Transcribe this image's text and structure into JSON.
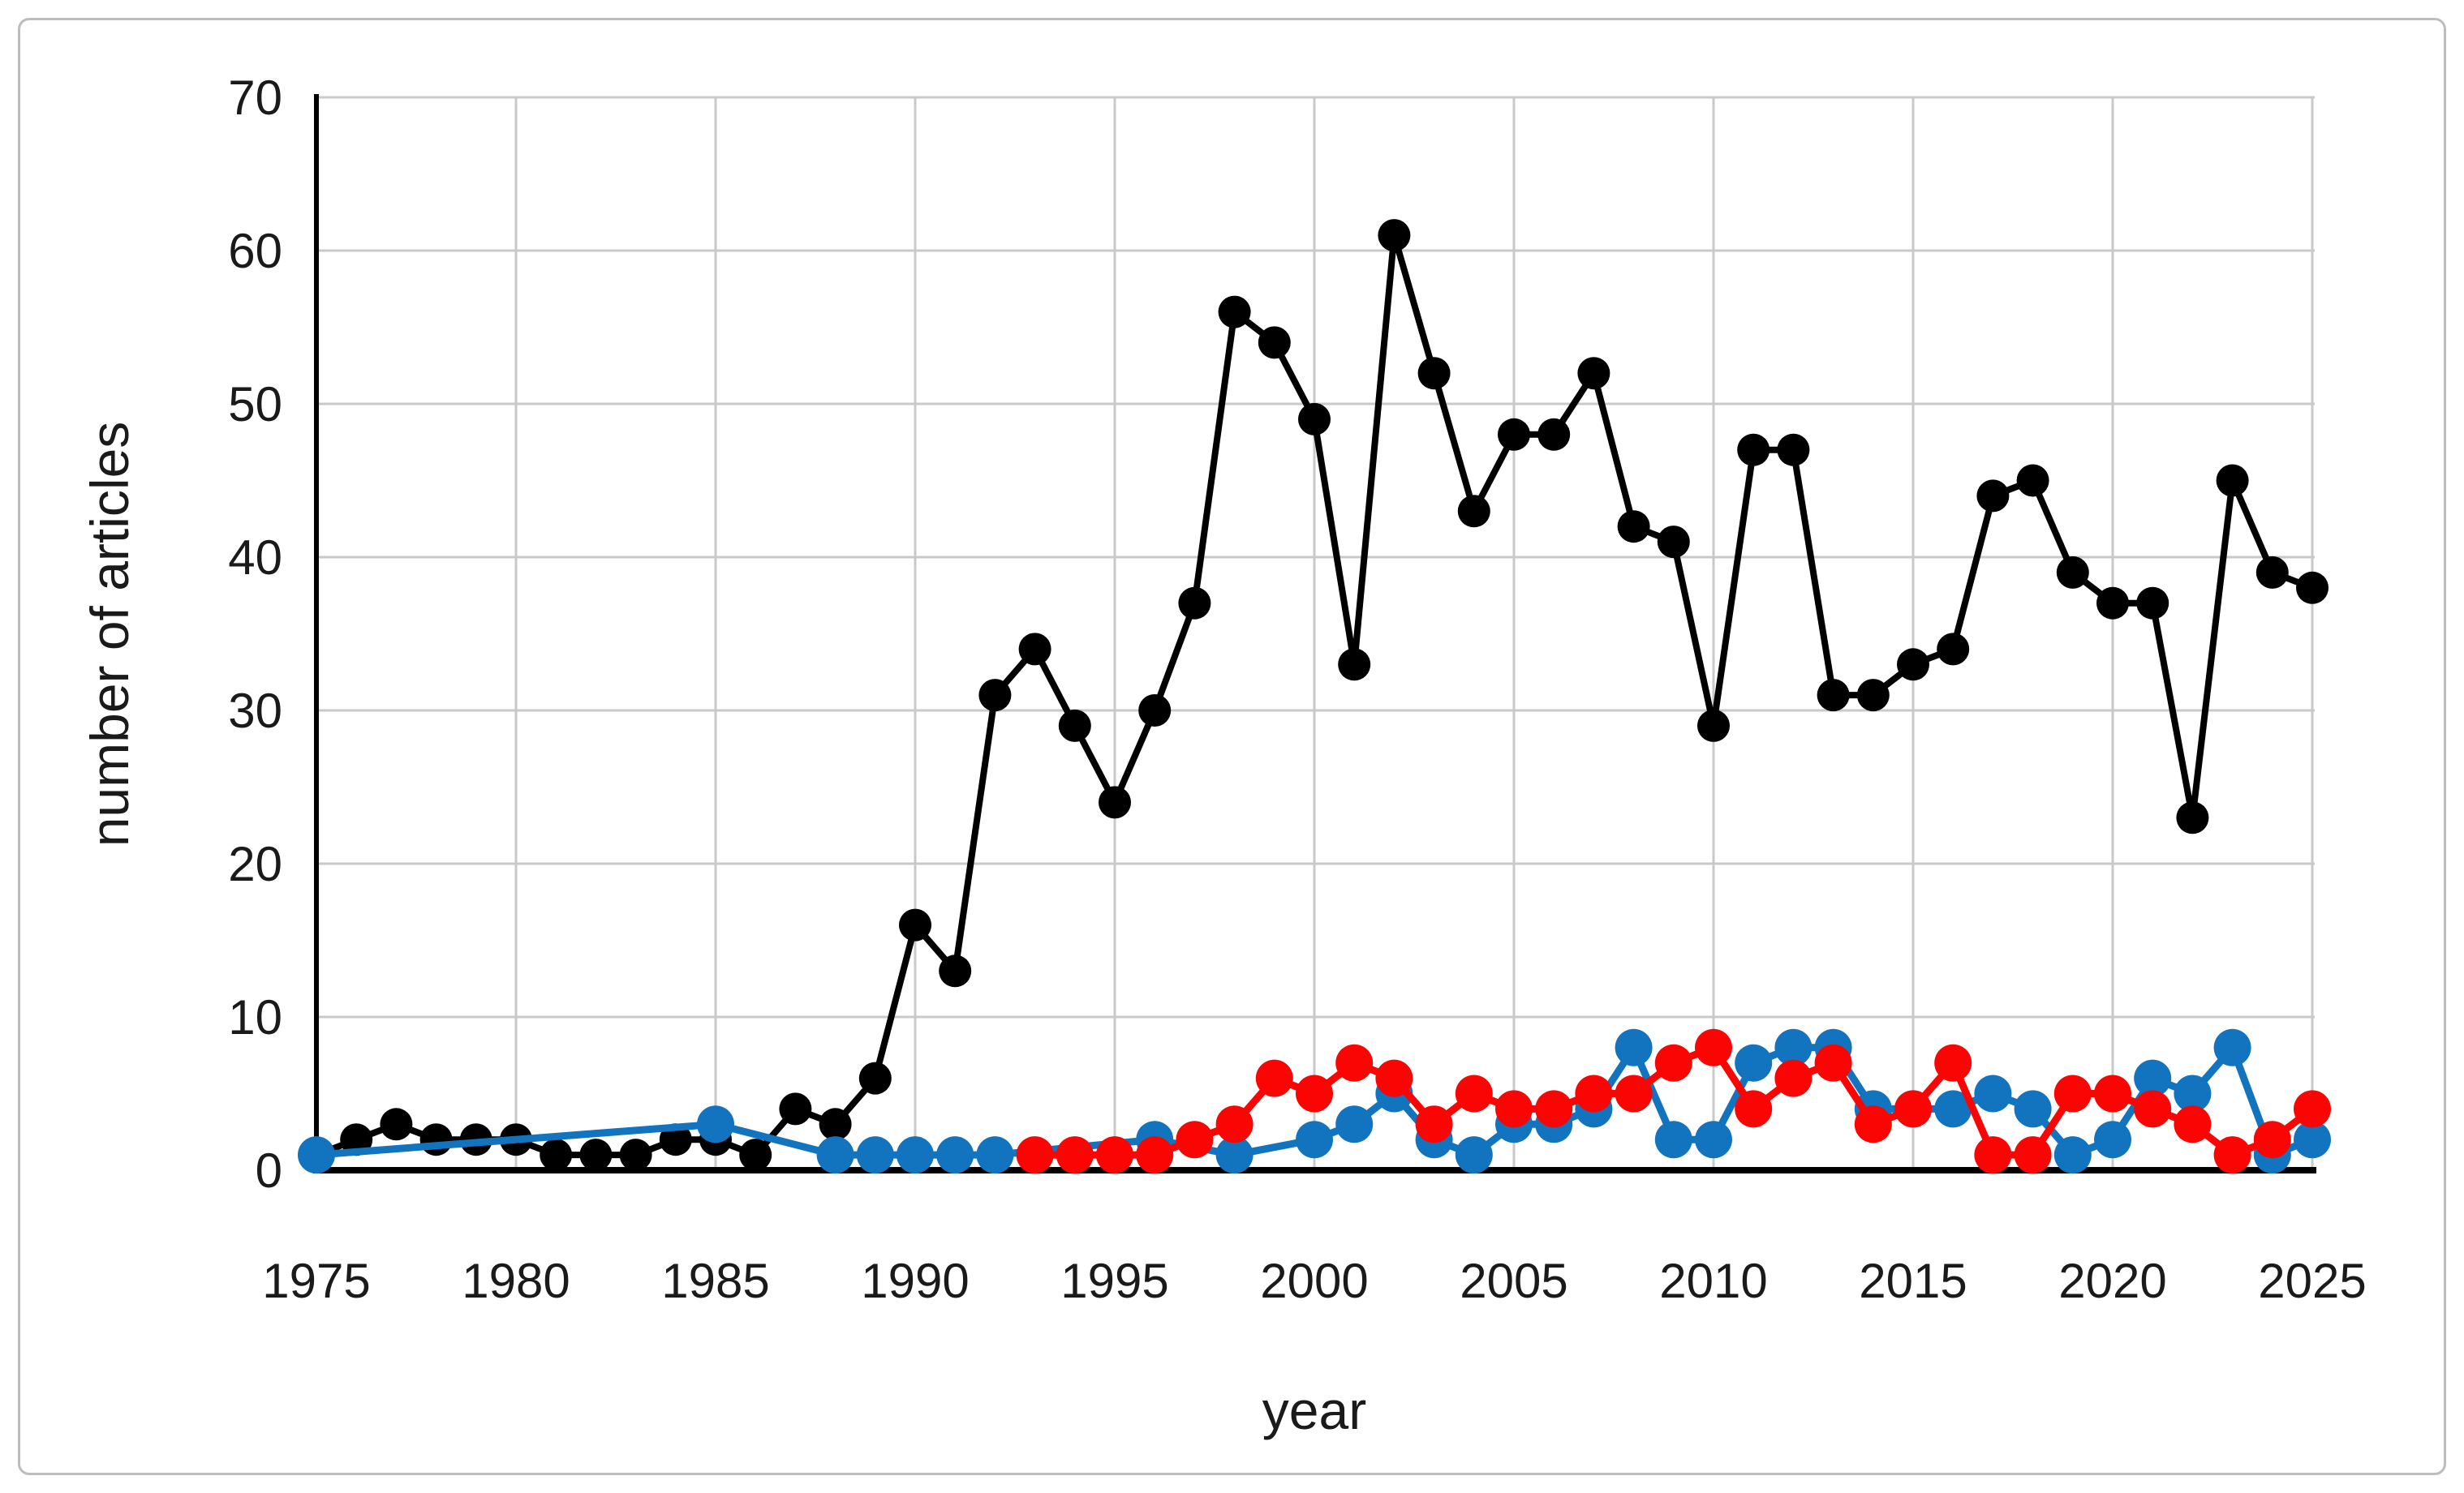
{
  "figure": {
    "background_color": "#ffffff",
    "border_color": "#bdbdbd"
  },
  "chart_data": {
    "type": "line",
    "title": "",
    "xlabel": "year",
    "ylabel": "number of articles",
    "xlim": [
      1975,
      2025
    ],
    "ylim": [
      0,
      70
    ],
    "x_ticks": [
      1975,
      1980,
      1985,
      1990,
      1995,
      2000,
      2005,
      2010,
      2015,
      2020,
      2025
    ],
    "y_ticks": [
      0,
      10,
      20,
      30,
      40,
      50,
      60,
      70
    ],
    "grid": true,
    "legend_position": "none",
    "gridline_color": "#c9c9c9",
    "axis_line_color": "#000000",
    "years": [
      1975,
      1976,
      1977,
      1978,
      1979,
      1980,
      1981,
      1982,
      1983,
      1984,
      1985,
      1986,
      1987,
      1988,
      1989,
      1990,
      1991,
      1992,
      1993,
      1994,
      1995,
      1996,
      1997,
      1998,
      1999,
      2000,
      2001,
      2002,
      2003,
      2004,
      2005,
      2006,
      2007,
      2008,
      2009,
      2010,
      2011,
      2012,
      2013,
      2014,
      2015,
      2016,
      2017,
      2018,
      2019,
      2020,
      2021,
      2022,
      2023,
      2024,
      2025
    ],
    "series": [
      {
        "name": "black",
        "color": "#000000",
        "values": [
          1,
          2,
          3,
          2,
          2,
          2,
          1,
          1,
          1,
          2,
          2,
          1,
          4,
          3,
          6,
          16,
          13,
          31,
          34,
          29,
          24,
          30,
          37,
          56,
          54,
          49,
          33,
          61,
          52,
          43,
          48,
          48,
          52,
          42,
          41,
          29,
          47,
          47,
          31,
          31,
          33,
          34,
          44,
          45,
          39,
          37,
          37,
          23,
          45,
          39,
          38
        ]
      },
      {
        "name": "blue",
        "color": "#1274bf",
        "values": [
          1,
          null,
          null,
          null,
          null,
          null,
          null,
          null,
          null,
          null,
          3,
          null,
          null,
          1,
          1,
          1,
          1,
          1,
          null,
          null,
          null,
          2,
          null,
          1,
          null,
          2,
          3,
          5,
          2,
          1,
          3,
          3,
          4,
          8,
          2,
          2,
          7,
          8,
          8,
          4,
          4,
          4,
          5,
          4,
          1,
          2,
          6,
          5,
          8,
          1,
          2
        ]
      },
      {
        "name": "red",
        "color": "#fb0404",
        "values": [
          null,
          null,
          null,
          null,
          null,
          null,
          null,
          null,
          null,
          null,
          null,
          null,
          null,
          null,
          null,
          null,
          null,
          null,
          1,
          1,
          1,
          1,
          2,
          3,
          6,
          5,
          7,
          6,
          3,
          5,
          4,
          4,
          5,
          5,
          7,
          8,
          4,
          6,
          7,
          3,
          4,
          7,
          1,
          1,
          5,
          5,
          4,
          3,
          1,
          2,
          4
        ]
      }
    ]
  }
}
